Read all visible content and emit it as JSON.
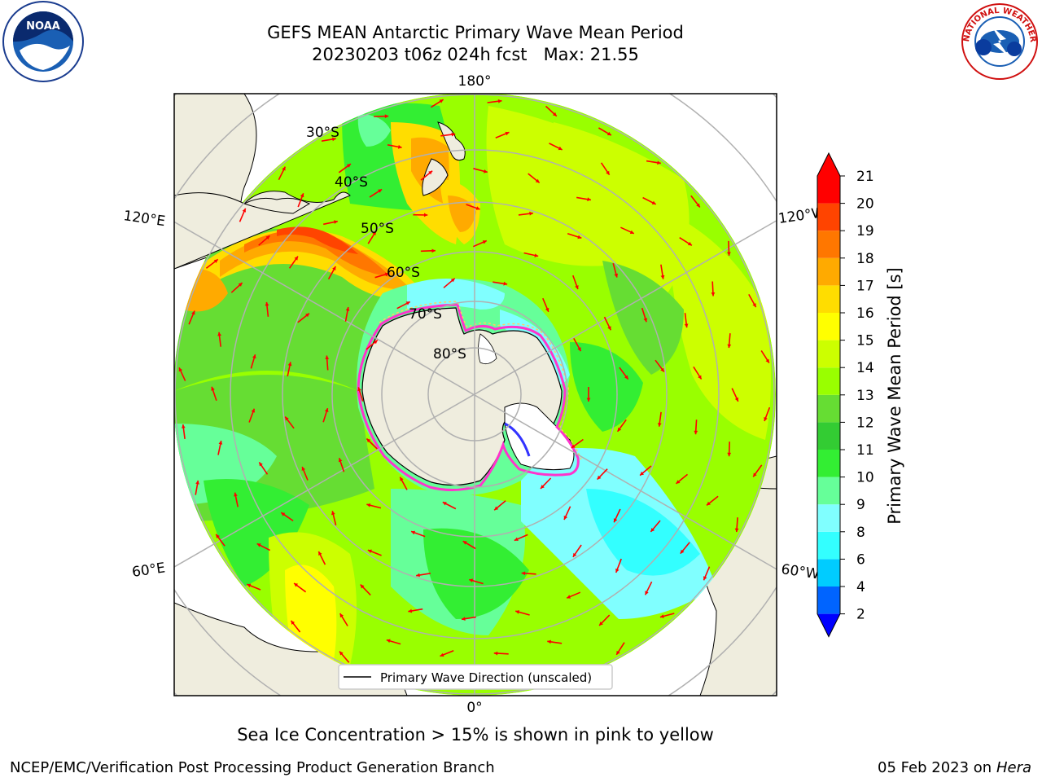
{
  "title": {
    "line1": "GEFS MEAN Antarctic Primary Wave Mean Period",
    "line2": "20230203 t06z 024h fcst   Max: 21.55"
  },
  "logos": {
    "left": {
      "icon": "noaa-logo",
      "text": "NOAA"
    },
    "right": {
      "icon": "national-weather-service-logo",
      "text": "NATIONAL WEATHER SERVICE"
    }
  },
  "map": {
    "projection": "south-polar-stereographic",
    "longitude_labels": [
      "180°",
      "120°E",
      "120°W",
      "60°E",
      "60°W",
      "0°"
    ],
    "latitude_labels": [
      "30°S",
      "40°S",
      "50°S",
      "60°S",
      "70°S",
      "80°S"
    ],
    "legend": "Primary Wave Direction (unscaled)",
    "arrow_color": "#ff0000",
    "land_color": "#efedde",
    "sea_ice_colors": [
      "#ff33cc",
      "#ffcc66"
    ]
  },
  "colorbar": {
    "label": "Primary Wave Mean Period [s]",
    "ticks": [
      "2",
      "4",
      "6",
      "8",
      "9",
      "10",
      "11",
      "12",
      "13",
      "14",
      "15",
      "16",
      "17",
      "18",
      "19",
      "20",
      "21"
    ],
    "colors": [
      "#0000ff",
      "#0064ff",
      "#00ccff",
      "#33ffff",
      "#80ffff",
      "#66ff99",
      "#33ee33",
      "#33cc33",
      "#66dd33",
      "#99ff00",
      "#ccff00",
      "#ffff00",
      "#ffdd00",
      "#ffaa00",
      "#ff7700",
      "#ff4400",
      "#ff0000"
    ]
  },
  "note": "Sea Ice Concentration > 15% is shown in pink to yellow",
  "footer": {
    "left": "NCEP/EMC/Verification Post Processing Product Generation Branch",
    "right_date": "05 Feb 2023 on",
    "right_host": "Hera"
  }
}
